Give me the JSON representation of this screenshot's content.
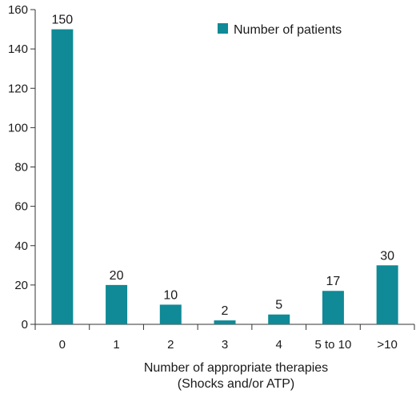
{
  "chart_data": {
    "type": "bar",
    "categories": [
      "0",
      "1",
      "2",
      "3",
      "4",
      "5 to 10",
      ">10"
    ],
    "series": [
      {
        "name": "Number of patients",
        "values": [
          150,
          20,
          10,
          2,
          5,
          17,
          30
        ],
        "color": "#0f8a96"
      }
    ],
    "data_labels": [
      "150",
      "20",
      "10",
      "2",
      "5",
      "17",
      "30"
    ],
    "xlabel": [
      "Number of appropriate therapies",
      "(Shocks and/or ATP)"
    ],
    "ylabel": "",
    "ylim": [
      0,
      160
    ],
    "yticks": [
      0,
      20,
      40,
      60,
      80,
      100,
      120,
      140,
      160
    ],
    "grid": false,
    "legend": {
      "position": "top-right",
      "entries": [
        "Number of patients"
      ]
    }
  }
}
